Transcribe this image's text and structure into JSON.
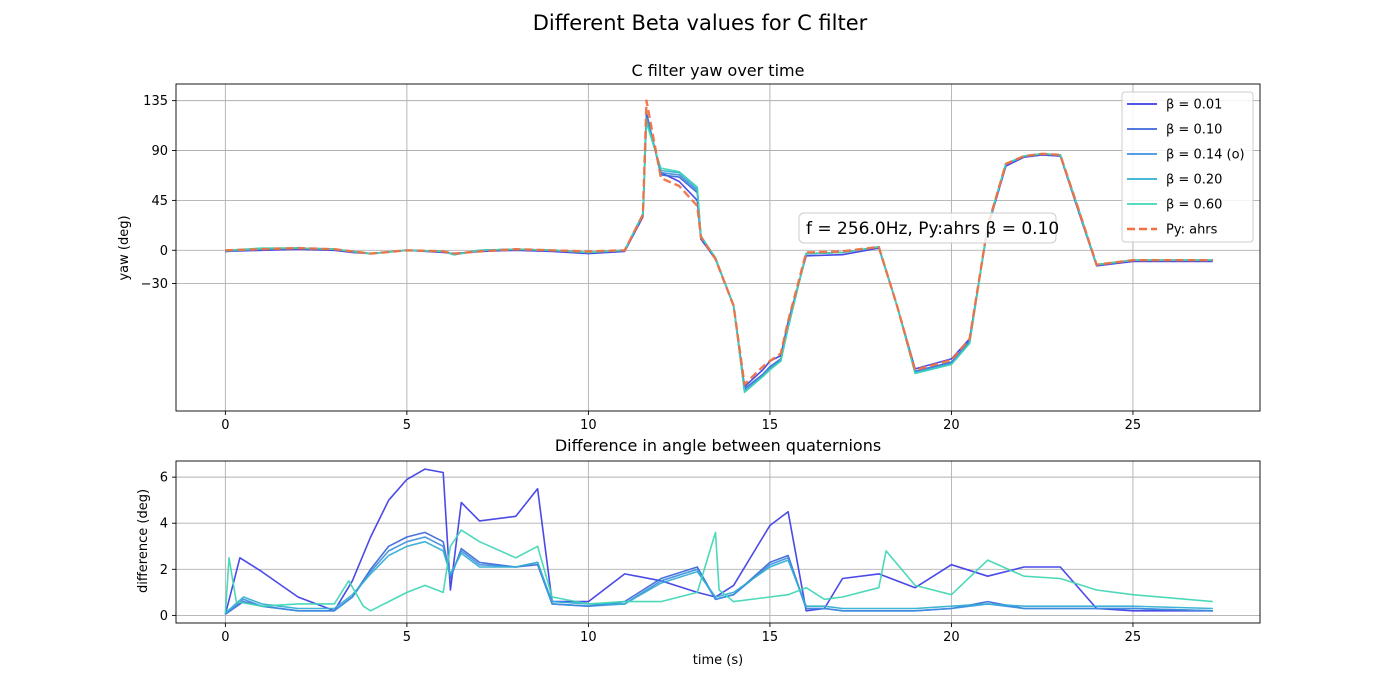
{
  "figure": {
    "title": "Different Beta values for C filter"
  },
  "chart_data": [
    {
      "type": "line",
      "title": "C filter yaw over time",
      "xlabel": "",
      "ylabel": "yaw (deg)",
      "xlim": [
        -1.36,
        28.5
      ],
      "ylim": [
        -145,
        150
      ],
      "xticks": [
        0,
        5,
        10,
        15,
        20,
        25
      ],
      "yticks": [
        135,
        90,
        45,
        0,
        -30
      ],
      "grid": true,
      "legend_position": "top-right",
      "annotation": "f = 256.0Hz,  Py:ahrs β = 0.10",
      "series": [
        {
          "name": "β = 0.01",
          "color": "#3b3be6",
          "dash": false,
          "x": [
            0,
            1,
            2,
            3,
            3.5,
            4,
            5,
            6,
            6.3,
            7,
            8,
            9,
            10,
            11,
            11.5,
            11.6,
            11.8,
            12,
            12.5,
            13,
            13.1,
            13.5,
            14,
            14.3,
            14.8,
            15,
            15.3,
            15.5,
            16,
            17,
            18,
            18.5,
            19,
            20,
            20.5,
            21,
            21.5,
            22,
            22.5,
            23,
            23.5,
            24,
            25,
            27.2
          ],
          "y": [
            -1,
            0,
            1,
            0,
            -2,
            -3,
            0,
            -2,
            -3,
            -1,
            0,
            -1,
            -3,
            -1,
            30,
            122,
            95,
            70,
            62,
            45,
            10,
            -8,
            -50,
            -123,
            -108,
            -100,
            -95,
            -65,
            -5,
            -4,
            2,
            -50,
            -107,
            -98,
            -80,
            20,
            76,
            84,
            86,
            85,
            35,
            -14,
            -10,
            -10
          ]
        },
        {
          "name": "β = 0.10",
          "color": "#3a66d8",
          "dash": false,
          "x": [
            0,
            1,
            2,
            3,
            3.5,
            4,
            5,
            6,
            6.3,
            7,
            8,
            9,
            10,
            11,
            11.5,
            11.6,
            11.8,
            12,
            12.5,
            13,
            13.1,
            13.5,
            14,
            14.3,
            14.8,
            15,
            15.3,
            15.5,
            16,
            17,
            18,
            18.5,
            19,
            20,
            20.5,
            21,
            21.5,
            22,
            22.5,
            23,
            23.5,
            24,
            25,
            27.2
          ],
          "y": [
            -1,
            1,
            2,
            1,
            -1,
            -3,
            0,
            -1,
            -4,
            0,
            1,
            0,
            -2,
            0,
            32,
            124,
            96,
            68,
            66,
            52,
            12,
            -7,
            -50,
            -125,
            -112,
            -105,
            -98,
            -68,
            -3,
            -2,
            3,
            -50,
            -109,
            -101,
            -82,
            22,
            78,
            85,
            87,
            86,
            37,
            -13,
            -9,
            -9
          ]
        },
        {
          "name": "β = 0.14 (o)",
          "color": "#3f8ee0",
          "dash": false,
          "x": [
            0,
            1,
            2,
            3,
            3.5,
            4,
            5,
            6,
            6.3,
            7,
            8,
            9,
            10,
            11,
            11.5,
            11.6,
            11.8,
            12,
            12.5,
            13,
            13.1,
            13.5,
            14,
            14.3,
            14.8,
            15,
            15.3,
            15.5,
            16,
            17,
            18,
            18.5,
            19,
            20,
            20.5,
            21,
            21.5,
            22,
            22.5,
            23,
            23.5,
            24,
            25,
            27.2
          ],
          "y": [
            -1,
            1,
            2,
            1,
            -1,
            -3,
            0,
            -1,
            -4,
            0,
            1,
            0,
            -2,
            0,
            32,
            120,
            96,
            70,
            68,
            54,
            12,
            -7,
            -50,
            -127,
            -113,
            -106,
            -99,
            -69,
            -3,
            -2,
            3,
            -50,
            -110,
            -102,
            -83,
            22,
            78,
            85,
            87,
            86,
            37,
            -13,
            -9,
            -9
          ]
        },
        {
          "name": "β = 0.20",
          "color": "#31acd2",
          "dash": false,
          "x": [
            0,
            1,
            2,
            3,
            3.5,
            4,
            5,
            6,
            6.3,
            7,
            8,
            9,
            10,
            11,
            11.5,
            11.6,
            11.8,
            12,
            12.5,
            13,
            13.1,
            13.5,
            14,
            14.3,
            14.8,
            15,
            15.3,
            15.5,
            16,
            17,
            18,
            18.5,
            19,
            20,
            20.5,
            21,
            21.5,
            22,
            22.5,
            23,
            23.5,
            24,
            25,
            27.2
          ],
          "y": [
            0,
            1,
            2,
            1,
            -1,
            -3,
            0,
            -1,
            -4,
            0,
            1,
            0,
            -2,
            0,
            33,
            118,
            95,
            72,
            70,
            56,
            13,
            -7,
            -50,
            -128,
            -114,
            -107,
            -100,
            -70,
            -3,
            -2,
            3,
            -50,
            -111,
            -103,
            -84,
            22,
            78,
            85,
            87,
            86,
            37,
            -13,
            -9,
            -9
          ]
        },
        {
          "name": "β = 0.60",
          "color": "#3ed6b3",
          "dash": false,
          "x": [
            0,
            1,
            2,
            3,
            3.5,
            4,
            5,
            6,
            6.3,
            7,
            8,
            9,
            10,
            11,
            11.5,
            11.6,
            11.8,
            12,
            12.5,
            13,
            13.1,
            13.5,
            14,
            14.3,
            14.8,
            15,
            15.3,
            15.5,
            16,
            17,
            18,
            18.5,
            19,
            20,
            20.5,
            21,
            21.5,
            22,
            22.5,
            23,
            23.5,
            24,
            25,
            27.2
          ],
          "y": [
            0,
            2,
            2,
            1,
            -1,
            -3,
            0,
            -1,
            -4,
            0,
            1,
            0,
            -2,
            0,
            33,
            115,
            94,
            74,
            71,
            57,
            13,
            -7,
            -50,
            -128,
            -114,
            -108,
            -100,
            -70,
            -3,
            -2,
            3,
            -50,
            -111,
            -103,
            -84,
            22,
            78,
            85,
            87,
            86,
            37,
            -13,
            -9,
            -9
          ]
        },
        {
          "name": "Py: ahrs",
          "color": "#f07040",
          "dash": true,
          "x": [
            0,
            1,
            2,
            3,
            3.5,
            4,
            5,
            6,
            6.3,
            7,
            8,
            9,
            10,
            11,
            11.5,
            11.6,
            11.8,
            12,
            12.5,
            13,
            13.1,
            13.5,
            14,
            14.3,
            14.8,
            15,
            15.3,
            15.5,
            16,
            17,
            18,
            18.5,
            19,
            20,
            20.5,
            21,
            21.5,
            22,
            22.5,
            23,
            23.5,
            24,
            25,
            27.2
          ],
          "y": [
            0,
            1,
            2,
            1,
            -1,
            -3,
            0,
            -1,
            -3,
            -1,
            1,
            0,
            -1,
            0,
            32,
            135,
            100,
            65,
            58,
            40,
            12,
            -8,
            -50,
            -121,
            -105,
            -100,
            -93,
            -64,
            -2,
            -1,
            3,
            -50,
            -108,
            -99,
            -80,
            22,
            78,
            85,
            87,
            86,
            37,
            -13,
            -9,
            -9
          ]
        }
      ]
    },
    {
      "type": "line",
      "title": "Difference in angle between quaternions",
      "xlabel": "time (s)",
      "ylabel": "difference (deg)",
      "xlim": [
        -1.36,
        28.5
      ],
      "ylim": [
        -0.33,
        6.7
      ],
      "xticks": [
        0,
        5,
        10,
        15,
        20,
        25
      ],
      "yticks": [
        0,
        2,
        4,
        6
      ],
      "grid": true,
      "series": [
        {
          "name": "β = 0.01",
          "color": "#3b3be6",
          "x": [
            0,
            0.4,
            1,
            2,
            3,
            3.5,
            4,
            4.5,
            5,
            5.5,
            6,
            6.2,
            6.5,
            7,
            8,
            8.6,
            9,
            10,
            11,
            12,
            13,
            13.5,
            14,
            15,
            15.5,
            16,
            16.5,
            17,
            18,
            19,
            20,
            21,
            22,
            23,
            24,
            25,
            27.2
          ],
          "y": [
            0.05,
            2.5,
            1.9,
            0.8,
            0.2,
            1.5,
            3.4,
            5.0,
            5.9,
            6.35,
            6.2,
            1.1,
            4.9,
            4.1,
            4.3,
            5.5,
            0.6,
            0.6,
            1.8,
            1.5,
            1.0,
            0.8,
            1.3,
            3.9,
            4.5,
            0.2,
            0.3,
            1.6,
            1.8,
            1.2,
            2.2,
            1.7,
            2.1,
            2.1,
            0.3,
            0.2,
            0.2
          ]
        },
        {
          "name": "β = 0.10",
          "color": "#3a66d8",
          "x": [
            0,
            0.5,
            1,
            2,
            3,
            3.5,
            4,
            4.5,
            5,
            5.5,
            6,
            6.2,
            6.5,
            7,
            8,
            8.6,
            9,
            10,
            11,
            12,
            13,
            13.5,
            14,
            15,
            15.5,
            16,
            16.5,
            17,
            18,
            19,
            20,
            21,
            22,
            23,
            24,
            25,
            27.2
          ],
          "y": [
            0.05,
            0.6,
            0.4,
            0.2,
            0.2,
            0.8,
            2.0,
            3.0,
            3.4,
            3.6,
            3.2,
            1.6,
            2.9,
            2.3,
            2.1,
            2.2,
            0.5,
            0.4,
            0.6,
            1.6,
            2.1,
            0.7,
            0.9,
            2.3,
            2.6,
            0.3,
            0.3,
            0.2,
            0.2,
            0.2,
            0.3,
            0.6,
            0.3,
            0.3,
            0.3,
            0.3,
            0.2
          ]
        },
        {
          "name": "β = 0.14 (o)",
          "color": "#3f8ee0",
          "x": [
            0,
            0.5,
            1,
            2,
            3,
            3.5,
            4,
            4.5,
            5,
            5.5,
            6,
            6.2,
            6.5,
            7,
            8,
            8.6,
            9,
            10,
            11,
            12,
            13,
            13.5,
            14,
            15,
            15.5,
            16,
            16.5,
            17,
            18,
            19,
            20,
            21,
            22,
            23,
            24,
            25,
            27.2
          ],
          "y": [
            0.05,
            0.7,
            0.4,
            0.2,
            0.2,
            0.8,
            1.9,
            2.8,
            3.2,
            3.4,
            3.0,
            1.7,
            2.8,
            2.2,
            2.1,
            2.3,
            0.5,
            0.4,
            0.5,
            1.5,
            2.0,
            0.7,
            0.9,
            2.2,
            2.5,
            0.3,
            0.3,
            0.2,
            0.2,
            0.2,
            0.3,
            0.5,
            0.3,
            0.3,
            0.3,
            0.3,
            0.2
          ]
        },
        {
          "name": "β = 0.20",
          "color": "#31acd2",
          "x": [
            0,
            0.5,
            1,
            2,
            3,
            3.5,
            4,
            4.5,
            5,
            5.5,
            6,
            6.2,
            6.5,
            7,
            8,
            8.6,
            9,
            10,
            11,
            12,
            13,
            13.5,
            14,
            15,
            15.5,
            16,
            16.5,
            17,
            18,
            19,
            20,
            21,
            22,
            23,
            24,
            25,
            27.2
          ],
          "y": [
            0.1,
            0.8,
            0.5,
            0.3,
            0.3,
            0.9,
            1.8,
            2.6,
            3.0,
            3.2,
            2.8,
            1.8,
            2.7,
            2.1,
            2.1,
            2.3,
            0.6,
            0.5,
            0.5,
            1.4,
            1.9,
            0.8,
            1.0,
            2.1,
            2.4,
            0.4,
            0.4,
            0.3,
            0.3,
            0.3,
            0.4,
            0.5,
            0.4,
            0.4,
            0.4,
            0.4,
            0.3
          ]
        },
        {
          "name": "β = 0.60",
          "color": "#3ed6b3",
          "x": [
            0,
            0.1,
            0.3,
            1,
            2,
            3,
            3.4,
            3.8,
            4,
            4.5,
            5,
            5.5,
            6,
            6.2,
            6.5,
            7,
            8,
            8.6,
            9,
            10,
            11,
            12,
            13,
            13.5,
            13.6,
            14,
            15,
            15.5,
            16,
            16.5,
            17,
            18,
            18.2,
            19,
            20,
            21,
            22,
            23,
            24,
            25,
            27.2
          ],
          "y": [
            0.1,
            2.5,
            0.6,
            0.4,
            0.5,
            0.5,
            1.5,
            0.4,
            0.2,
            0.6,
            1.0,
            1.3,
            1.0,
            3.0,
            3.7,
            3.2,
            2.5,
            3.0,
            0.8,
            0.5,
            0.6,
            0.6,
            1.0,
            3.6,
            1.1,
            0.6,
            0.8,
            0.9,
            1.2,
            0.7,
            0.8,
            1.2,
            2.8,
            1.3,
            0.9,
            2.4,
            1.7,
            1.6,
            1.1,
            0.9,
            0.6
          ]
        }
      ]
    }
  ]
}
